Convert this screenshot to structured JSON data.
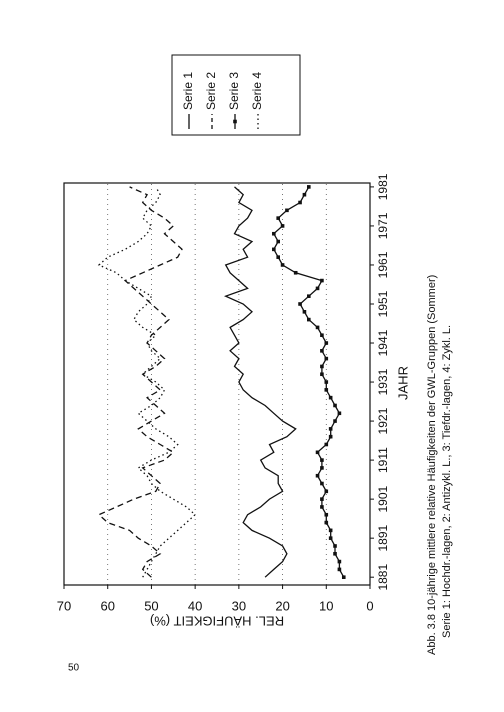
{
  "page_number": "50",
  "chart_data": {
    "type": "line",
    "title": "Abb. 3.8 10-jährige mittlere relative Häufigkeiten der GWL-Gruppen (Sommer)",
    "subtitle": "Serie 1: Hochdr.-lagen, 2: Antizykl. L., 3: Tiefdr.-lagen, 4: Zykl. L.",
    "x_label": "JAHR",
    "y_label": "REL. HÄUFIGKEIT (%)",
    "x": [
      1881,
      1883,
      1885,
      1887,
      1889,
      1891,
      1893,
      1895,
      1897,
      1899,
      1901,
      1903,
      1905,
      1907,
      1909,
      1911,
      1913,
      1915,
      1917,
      1919,
      1921,
      1923,
      1925,
      1927,
      1929,
      1931,
      1933,
      1935,
      1937,
      1939,
      1941,
      1943,
      1945,
      1947,
      1949,
      1951,
      1953,
      1955,
      1957,
      1959,
      1961,
      1963,
      1965,
      1967,
      1969,
      1971,
      1973,
      1975,
      1977,
      1979,
      1981
    ],
    "xlim": [
      1879,
      1982
    ],
    "xticks": [
      1881,
      1891,
      1901,
      1911,
      1921,
      1931,
      1941,
      1951,
      1961,
      1971,
      1981
    ],
    "ylim": [
      0,
      70
    ],
    "yticks": [
      0,
      10,
      20,
      30,
      40,
      50,
      60,
      70
    ],
    "grid": true,
    "series": [
      {
        "name": "Serie 1",
        "color": "#111111",
        "style": "solid",
        "values": [
          24,
          22,
          20,
          19,
          20,
          23,
          27,
          29,
          28,
          25,
          23,
          20,
          21,
          21,
          24,
          25,
          22,
          23,
          19,
          17,
          20,
          22,
          24,
          27,
          29,
          30,
          29,
          31,
          30,
          32,
          30,
          31,
          32,
          29,
          27,
          29,
          33,
          28,
          30,
          32,
          33,
          28,
          29,
          27,
          31,
          30,
          28,
          27,
          30,
          29,
          31
        ]
      },
      {
        "name": "Serie 2",
        "color": "#111111",
        "style": "dashed",
        "values": [
          50,
          52,
          51,
          48,
          50,
          53,
          55,
          60,
          62,
          58,
          54,
          49,
          48,
          50,
          52,
          47,
          45,
          48,
          51,
          53,
          50,
          47,
          49,
          51,
          48,
          50,
          52,
          49,
          47,
          49,
          51,
          50,
          48,
          46,
          48,
          50,
          52,
          54,
          56,
          52,
          48,
          44,
          43,
          45,
          47,
          45,
          47,
          50,
          52,
          51,
          55
        ]
      },
      {
        "name": "Serie 3",
        "color": "#111111",
        "style": "marker",
        "values": [
          6,
          7,
          7,
          8,
          8,
          9,
          9,
          10,
          10,
          11,
          11,
          10,
          11,
          12,
          11,
          11,
          12,
          10,
          9,
          9,
          8,
          7,
          8,
          9,
          10,
          10,
          11,
          11,
          10,
          11,
          10,
          11,
          12,
          14,
          15,
          16,
          14,
          12,
          11,
          17,
          20,
          21,
          22,
          21,
          22,
          20,
          21,
          19,
          16,
          15,
          14
        ]
      },
      {
        "name": "Serie 4",
        "color": "#111111",
        "style": "dotted",
        "values": [
          52,
          51,
          50,
          49,
          48,
          46,
          44,
          42,
          40,
          42,
          45,
          48,
          50,
          51,
          53,
          50,
          46,
          44,
          46,
          49,
          51,
          53,
          50,
          48,
          47,
          49,
          52,
          50,
          48,
          50,
          51,
          49,
          52,
          54,
          53,
          51,
          50,
          53,
          56,
          58,
          62,
          60,
          56,
          53,
          51,
          50,
          52,
          51,
          49,
          48,
          49
        ]
      }
    ]
  }
}
